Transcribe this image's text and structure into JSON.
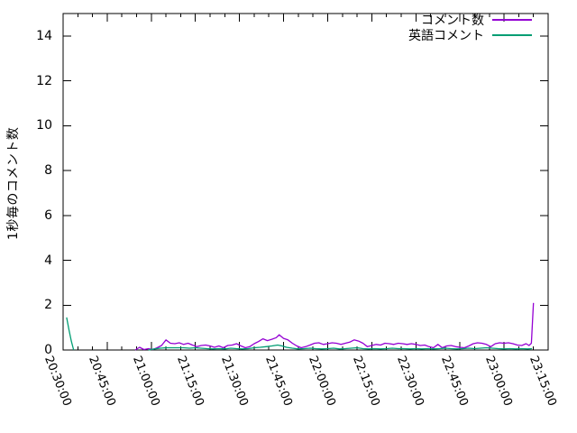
{
  "chart_data": {
    "type": "line",
    "title": "",
    "xlabel": "",
    "ylabel": "1秒毎のコメント数",
    "ylim": [
      0,
      15
    ],
    "yticks": [
      0,
      2,
      4,
      6,
      8,
      10,
      12,
      14
    ],
    "x_total_minutes": 165,
    "xtick_interval_minutes": 15,
    "x_minor_tick_minutes": 5,
    "xtick_labels": [
      "20:30:00",
      "20:45:00",
      "21:00:00",
      "21:15:00",
      "21:30:00",
      "21:45:00",
      "22:00:00",
      "22:15:00",
      "22:30:00",
      "22:45:00",
      "23:00:00",
      "23:15:00"
    ],
    "grid": false,
    "legend_position": "top-right-inside",
    "background_color": "#ffffff",
    "axis_color": "#000000",
    "series": [
      {
        "name": "コメント数",
        "color": "#9400d3",
        "segments": [
          [
            [
              24.5,
              0
            ],
            [
              26,
              0.12
            ],
            [
              27.5,
              0.02
            ],
            [
              29,
              0.06
            ],
            [
              30.5,
              0.02
            ],
            [
              32,
              0.1
            ],
            [
              33.5,
              0.2
            ],
            [
              35,
              0.45
            ],
            [
              36.5,
              0.3
            ],
            [
              38,
              0.28
            ],
            [
              39.5,
              0.32
            ],
            [
              41,
              0.25
            ],
            [
              42.5,
              0.3
            ],
            [
              44,
              0.22
            ],
            [
              45.5,
              0.15
            ],
            [
              47,
              0.2
            ],
            [
              48.5,
              0.22
            ],
            [
              50,
              0.18
            ],
            [
              51.5,
              0.12
            ],
            [
              53,
              0.18
            ],
            [
              54.5,
              0.1
            ],
            [
              56,
              0.2
            ],
            [
              57.5,
              0.22
            ],
            [
              59,
              0.28
            ],
            [
              60.5,
              0.18
            ],
            [
              62,
              0.1
            ],
            [
              63.5,
              0.15
            ],
            [
              65,
              0.28
            ],
            [
              66.5,
              0.38
            ],
            [
              68,
              0.5
            ],
            [
              69.5,
              0.42
            ],
            [
              71,
              0.48
            ],
            [
              72.5,
              0.55
            ],
            [
              73.5,
              0.68
            ],
            [
              75,
              0.52
            ],
            [
              76.5,
              0.45
            ],
            [
              78,
              0.3
            ],
            [
              79.5,
              0.18
            ],
            [
              81,
              0.1
            ],
            [
              82.5,
              0.15
            ],
            [
              84,
              0.22
            ],
            [
              85.5,
              0.3
            ],
            [
              87,
              0.32
            ],
            [
              88.5,
              0.25
            ],
            [
              90,
              0.28
            ],
            [
              91.5,
              0.32
            ],
            [
              93,
              0.3
            ],
            [
              94.5,
              0.25
            ],
            [
              96,
              0.3
            ],
            [
              97.5,
              0.35
            ],
            [
              99,
              0.45
            ],
            [
              100.5,
              0.4
            ],
            [
              102,
              0.3
            ],
            [
              103.5,
              0.15
            ],
            [
              105,
              0.2
            ],
            [
              106.5,
              0.25
            ],
            [
              108,
              0.22
            ],
            [
              109.5,
              0.3
            ],
            [
              111,
              0.28
            ],
            [
              112.5,
              0.25
            ],
            [
              114,
              0.3
            ],
            [
              115.5,
              0.28
            ],
            [
              117,
              0.25
            ],
            [
              118.5,
              0.28
            ],
            [
              120,
              0.25
            ],
            [
              121.5,
              0.2
            ],
            [
              123,
              0.22
            ],
            [
              124.5,
              0.15
            ],
            [
              126,
              0.1
            ],
            [
              127.5,
              0.25
            ],
            [
              129,
              0.1
            ],
            [
              130.5,
              0.18
            ],
            [
              132,
              0.2
            ],
            [
              133.5,
              0.15
            ],
            [
              135,
              0.12
            ],
            [
              136.5,
              0.1
            ],
            [
              138,
              0.18
            ],
            [
              139.5,
              0.28
            ],
            [
              141,
              0.32
            ],
            [
              142.5,
              0.3
            ],
            [
              144,
              0.25
            ],
            [
              145.5,
              0.15
            ],
            [
              147,
              0.28
            ],
            [
              148.5,
              0.32
            ],
            [
              150,
              0.3
            ],
            [
              151.5,
              0.32
            ],
            [
              153,
              0.28
            ],
            [
              154.5,
              0.22
            ],
            [
              156,
              0.2
            ],
            [
              157.5,
              0.28
            ],
            [
              158.5,
              0.2
            ],
            [
              159.3,
              0.3
            ],
            [
              160,
              2.1
            ]
          ]
        ]
      },
      {
        "name": "英語コメント",
        "color": "#009e73",
        "segments": [
          [
            [
              1.2,
              1.45
            ],
            [
              2,
              0.9
            ],
            [
              2.8,
              0.4
            ],
            [
              3.6,
              0
            ]
          ],
          [
            [
              29,
              0
            ],
            [
              31,
              0.05
            ],
            [
              33,
              0.08
            ],
            [
              35,
              0.1
            ],
            [
              37,
              0.1
            ],
            [
              39,
              0.1
            ],
            [
              41,
              0.1
            ],
            [
              43,
              0.08
            ],
            [
              45,
              0.1
            ],
            [
              47,
              0.08
            ],
            [
              49,
              0.06
            ],
            [
              51,
              0.05
            ],
            [
              53,
              0.06
            ],
            [
              55,
              0.05
            ],
            [
              57,
              0.08
            ],
            [
              59,
              0.06
            ],
            [
              61,
              0.05
            ],
            [
              63,
              0.06
            ],
            [
              65,
              0.1
            ],
            [
              67,
              0.12
            ],
            [
              69,
              0.15
            ],
            [
              71,
              0.18
            ],
            [
              73,
              0.22
            ],
            [
              74.5,
              0.18
            ],
            [
              76,
              0.12
            ],
            [
              78,
              0.08
            ],
            [
              80,
              0.05
            ],
            [
              82,
              0.06
            ],
            [
              84,
              0.08
            ],
            [
              86,
              0.06
            ],
            [
              88,
              0.05
            ],
            [
              90,
              0.06
            ],
            [
              92,
              0.08
            ],
            [
              94,
              0.05
            ],
            [
              96,
              0.06
            ],
            [
              98,
              0.08
            ],
            [
              100,
              0.1
            ],
            [
              102,
              0.06
            ],
            [
              104,
              0.05
            ],
            [
              106,
              0.06
            ],
            [
              108,
              0.05
            ],
            [
              110,
              0.06
            ],
            [
              112,
              0.08
            ],
            [
              114,
              0.06
            ],
            [
              116,
              0.06
            ],
            [
              118,
              0.05
            ],
            [
              120,
              0.06
            ],
            [
              122,
              0.05
            ],
            [
              124,
              0.06
            ],
            [
              126,
              0.05
            ],
            [
              128,
              0.06
            ],
            [
              130,
              0.08
            ],
            [
              132,
              0.06
            ],
            [
              134,
              0.05
            ],
            [
              136,
              0.06
            ],
            [
              138,
              0.08
            ],
            [
              140,
              0.06
            ],
            [
              142,
              0.08
            ],
            [
              144,
              0.1
            ],
            [
              146,
              0.08
            ],
            [
              148,
              0.06
            ],
            [
              150,
              0.05
            ],
            [
              152,
              0.06
            ],
            [
              154,
              0.05
            ],
            [
              156,
              0.06
            ],
            [
              158,
              0.05
            ],
            [
              159.5,
              0.06
            ]
          ]
        ]
      }
    ]
  }
}
